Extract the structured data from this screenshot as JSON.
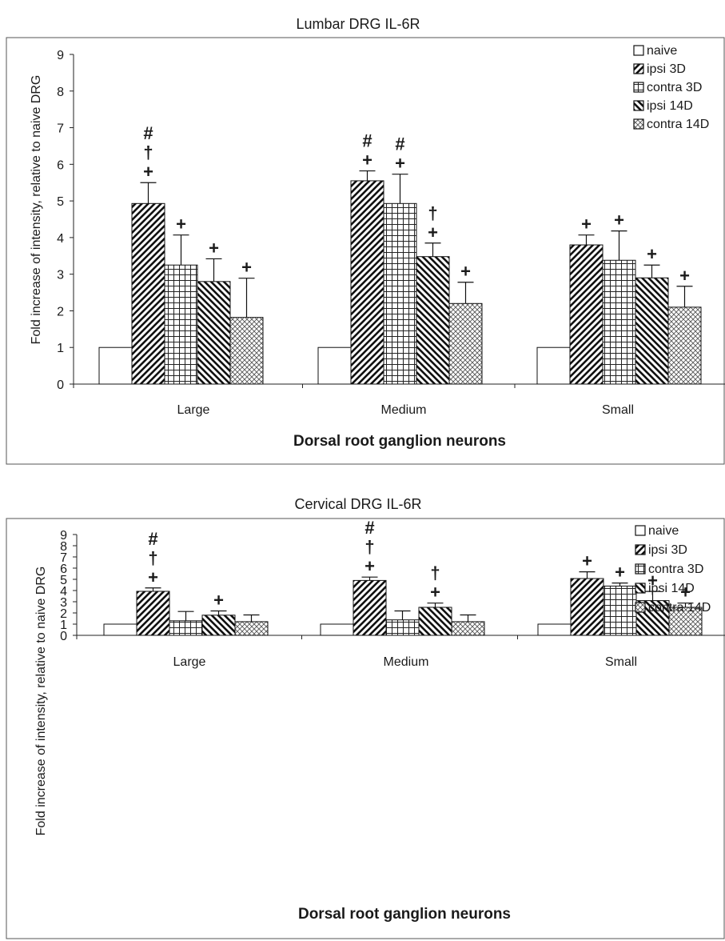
{
  "chart_data": [
    {
      "type": "bar",
      "title": "Lumbar DRG IL-6R",
      "xlabel": "Dorsal root ganglion neurons",
      "ylabel": "Fold increase of intensity, relative to naive DRG",
      "ylim": [
        0,
        9
      ],
      "yticks": [
        "0",
        "1",
        "2",
        "3",
        "4",
        "5",
        "6",
        "7",
        "8",
        "9"
      ],
      "categories": [
        "Large",
        "Medium",
        "Small"
      ],
      "legend_position": "top-right",
      "series": [
        {
          "name": "naive",
          "pattern": "none",
          "values": [
            1.0,
            1.0,
            1.0
          ],
          "errors": [
            0,
            0,
            0
          ],
          "marks": [
            "",
            "",
            ""
          ]
        },
        {
          "name": "ipsi 3D",
          "pattern": "diag-right",
          "values": [
            4.93,
            5.55,
            3.8
          ],
          "errors": [
            0.57,
            0.27,
            0.27
          ],
          "marks": [
            "#\n†\n+",
            "#\n+",
            "+"
          ]
        },
        {
          "name": "contra 3D",
          "pattern": "grid",
          "values": [
            3.25,
            4.93,
            3.38
          ],
          "errors": [
            0.82,
            0.8,
            0.8
          ],
          "marks": [
            "+",
            "#\n+",
            "+"
          ]
        },
        {
          "name": "ipsi 14D",
          "pattern": "diag-left",
          "values": [
            2.8,
            3.48,
            2.9
          ],
          "errors": [
            0.62,
            0.37,
            0.35
          ],
          "marks": [
            "+",
            "†\n+",
            "+"
          ]
        },
        {
          "name": "contra 14D",
          "pattern": "crosshatch",
          "values": [
            1.82,
            2.2,
            2.1
          ],
          "errors": [
            1.07,
            0.58,
            0.57
          ],
          "marks": [
            "+",
            "+",
            "+"
          ]
        }
      ]
    },
    {
      "type": "bar",
      "title": "Cervical DRG IL-6R",
      "xlabel": "Dorsal root ganglion neurons",
      "ylabel": "Fold increase of intensity, relative to naive DRG",
      "ylim": [
        0,
        9
      ],
      "yticks": [
        "0",
        "1",
        "2",
        "3",
        "4",
        "5",
        "6",
        "7",
        "8",
        "9"
      ],
      "categories": [
        "Large",
        "Medium",
        "Small"
      ],
      "legend_position": "top-right",
      "series": [
        {
          "name": "naive",
          "pattern": "none",
          "values": [
            1.0,
            1.0,
            1.0
          ],
          "errors": [
            0,
            0,
            0
          ],
          "marks": [
            "",
            "",
            ""
          ]
        },
        {
          "name": "ipsi 3D",
          "pattern": "diag-right",
          "values": [
            3.93,
            4.9,
            5.07
          ],
          "errors": [
            0.3,
            0.3,
            0.6
          ],
          "marks": [
            "#\n†\n+",
            "#\n†\n+",
            "+"
          ]
        },
        {
          "name": "contra 3D",
          "pattern": "grid",
          "values": [
            1.3,
            1.38,
            4.4
          ],
          "errors": [
            0.83,
            0.8,
            0.27
          ],
          "marks": [
            "",
            "",
            "+"
          ]
        },
        {
          "name": "ipsi 14D",
          "pattern": "diag-left",
          "values": [
            1.8,
            2.5,
            3.1
          ],
          "errors": [
            0.38,
            0.38,
            0.82
          ],
          "marks": [
            "+",
            "†\n+",
            "+"
          ]
        },
        {
          "name": "contra 14D",
          "pattern": "crosshatch",
          "values": [
            1.22,
            1.22,
            2.5
          ],
          "errors": [
            0.6,
            0.6,
            0.38
          ],
          "marks": [
            "",
            "",
            "+"
          ]
        }
      ]
    }
  ]
}
